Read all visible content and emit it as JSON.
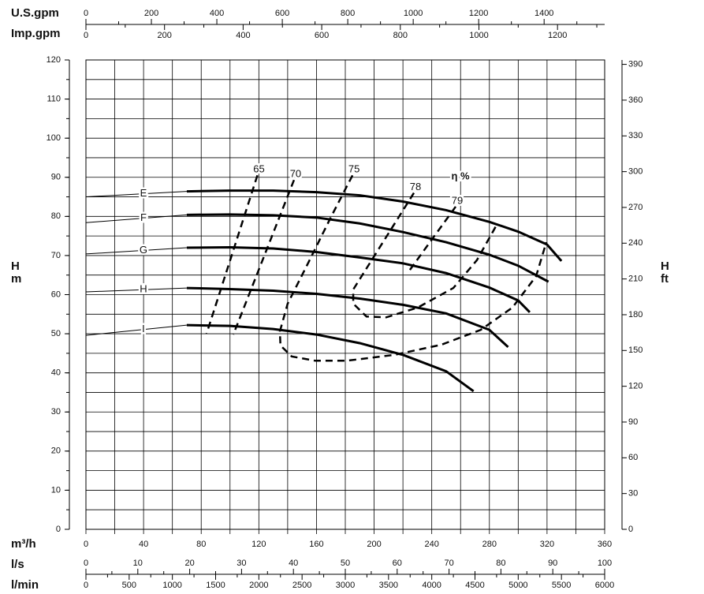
{
  "chart_data": {
    "type": "line",
    "x_label": "m³/h",
    "y_label": "H",
    "y_unit": "m",
    "y2_label": "H",
    "y2_unit": "ft",
    "efficiency_label": "η %",
    "xlim": [
      0,
      360
    ],
    "xticks": [
      0,
      40,
      80,
      120,
      160,
      200,
      240,
      280,
      320,
      360
    ],
    "xgrid": [
      0,
      20,
      40,
      60,
      80,
      100,
      120,
      140,
      160,
      180,
      200,
      220,
      240,
      260,
      280,
      300,
      320,
      340,
      360
    ],
    "ylim": [
      0,
      120
    ],
    "yticks": [
      0,
      10,
      20,
      30,
      40,
      50,
      60,
      70,
      80,
      90,
      100,
      110,
      120
    ],
    "ygrid": [
      0,
      5,
      10,
      15,
      20,
      25,
      30,
      35,
      40,
      45,
      50,
      55,
      60,
      65,
      70,
      75,
      80,
      85,
      90,
      95,
      100,
      105,
      110,
      115,
      120
    ],
    "y2lim": [
      0,
      393.7
    ],
    "y2ticks": [
      0,
      30,
      60,
      90,
      120,
      150,
      180,
      210,
      240,
      270,
      300,
      330,
      360,
      390
    ],
    "secondary_x": [
      {
        "label": "U.S.gpm",
        "lim": [
          0,
          1585
        ],
        "ticks": [
          0,
          200,
          400,
          600,
          800,
          1000,
          1200,
          1400
        ],
        "minor": [
          100,
          300,
          500,
          700,
          900,
          1100,
          1300,
          1500
        ]
      },
      {
        "label": "Imp.gpm",
        "lim": [
          0,
          1320
        ],
        "ticks": [
          0,
          200,
          400,
          600,
          800,
          1000,
          1200
        ],
        "minor": [
          100,
          300,
          500,
          700,
          900,
          1100,
          1300
        ]
      },
      {
        "label": "l/s",
        "lim": [
          0,
          100
        ],
        "ticks": [
          0,
          10,
          20,
          30,
          40,
          50,
          60,
          70,
          80,
          90,
          100
        ],
        "minor": [
          5,
          15,
          25,
          35,
          45,
          55,
          65,
          75,
          85,
          95
        ]
      },
      {
        "label": "l/min",
        "lim": [
          0,
          6000
        ],
        "ticks": [
          0,
          500,
          1000,
          1500,
          2000,
          2500,
          3000,
          3500,
          4000,
          4500,
          5000,
          5500,
          6000
        ],
        "minor": [
          250,
          750,
          1250,
          1750,
          2250,
          2750,
          3250,
          3750,
          4250,
          4750,
          5250,
          5750
        ]
      }
    ],
    "series": [
      {
        "name": "E",
        "color": "#000000",
        "x": [
          0,
          70,
          100,
          130,
          160,
          190,
          220,
          250,
          280,
          300,
          320,
          330
        ],
        "values": [
          85,
          86.4,
          86.6,
          86.6,
          86.2,
          85.4,
          83.8,
          81.6,
          78.6,
          76.1,
          72.8,
          68.6
        ]
      },
      {
        "name": "F",
        "color": "#000000",
        "x": [
          0,
          70,
          100,
          130,
          160,
          190,
          220,
          250,
          280,
          300,
          321
        ],
        "values": [
          78.4,
          80.4,
          80.5,
          80.3,
          79.7,
          78.2,
          76,
          73.4,
          70.2,
          67.4,
          63.3
        ]
      },
      {
        "name": "G",
        "color": "#000000",
        "x": [
          0,
          70,
          100,
          130,
          160,
          190,
          220,
          250,
          280,
          300,
          308
        ],
        "values": [
          70.4,
          72,
          72.1,
          71.8,
          70.9,
          69.5,
          68,
          65.5,
          61.8,
          58.5,
          55.5
        ]
      },
      {
        "name": "H",
        "color": "#000000",
        "x": [
          0,
          70,
          100,
          130,
          160,
          190,
          220,
          250,
          280,
          293
        ],
        "values": [
          60.7,
          61.7,
          61.4,
          61,
          60.2,
          59,
          57.4,
          55.2,
          51,
          46.6
        ]
      },
      {
        "name": "I",
        "color": "#000000",
        "x": [
          0,
          70,
          100,
          130,
          160,
          190,
          220,
          250,
          269
        ],
        "values": [
          49.6,
          52.2,
          52,
          51.2,
          49.8,
          47.6,
          44.6,
          40.4,
          35.3
        ]
      }
    ],
    "efficiency_curves": [
      {
        "name": "65",
        "color": "#000000",
        "dash": true,
        "x": [
          119,
          83.7
        ],
        "values": [
          90.5,
          50
        ]
      },
      {
        "name": "70",
        "color": "#000000",
        "dash": true,
        "x": [
          144.4,
          102.3
        ],
        "values": [
          89.3,
          49.8
        ]
      },
      {
        "name": "75",
        "color": "#000000",
        "dash": true,
        "x": [
          185,
          170,
          153.7,
          140,
          134.6,
          135,
          142.8,
          159.2,
          181,
          214,
          246.7,
          274,
          296,
          312.4,
          319.5
        ],
        "values": [
          90.5,
          79.8,
          67.7,
          57.7,
          50.6,
          47,
          44.2,
          43.1,
          43.1,
          44.6,
          47.2,
          51,
          56.7,
          64.7,
          73.4
        ]
      },
      {
        "name": "78",
        "color": "#000000",
        "dash": true,
        "x": [
          227.6,
          185.5,
          185.5,
          194.7,
          208.4,
          230.3,
          255,
          271.3,
          285
        ],
        "values": [
          86,
          61.3,
          57.7,
          54.4,
          54.2,
          56.7,
          61.7,
          68.8,
          77.8
        ]
      },
      {
        "name": "79",
        "color": "#000000",
        "dash": true,
        "x": [
          256.6,
          223.2
        ],
        "values": [
          82.5,
          65.5
        ]
      }
    ]
  }
}
